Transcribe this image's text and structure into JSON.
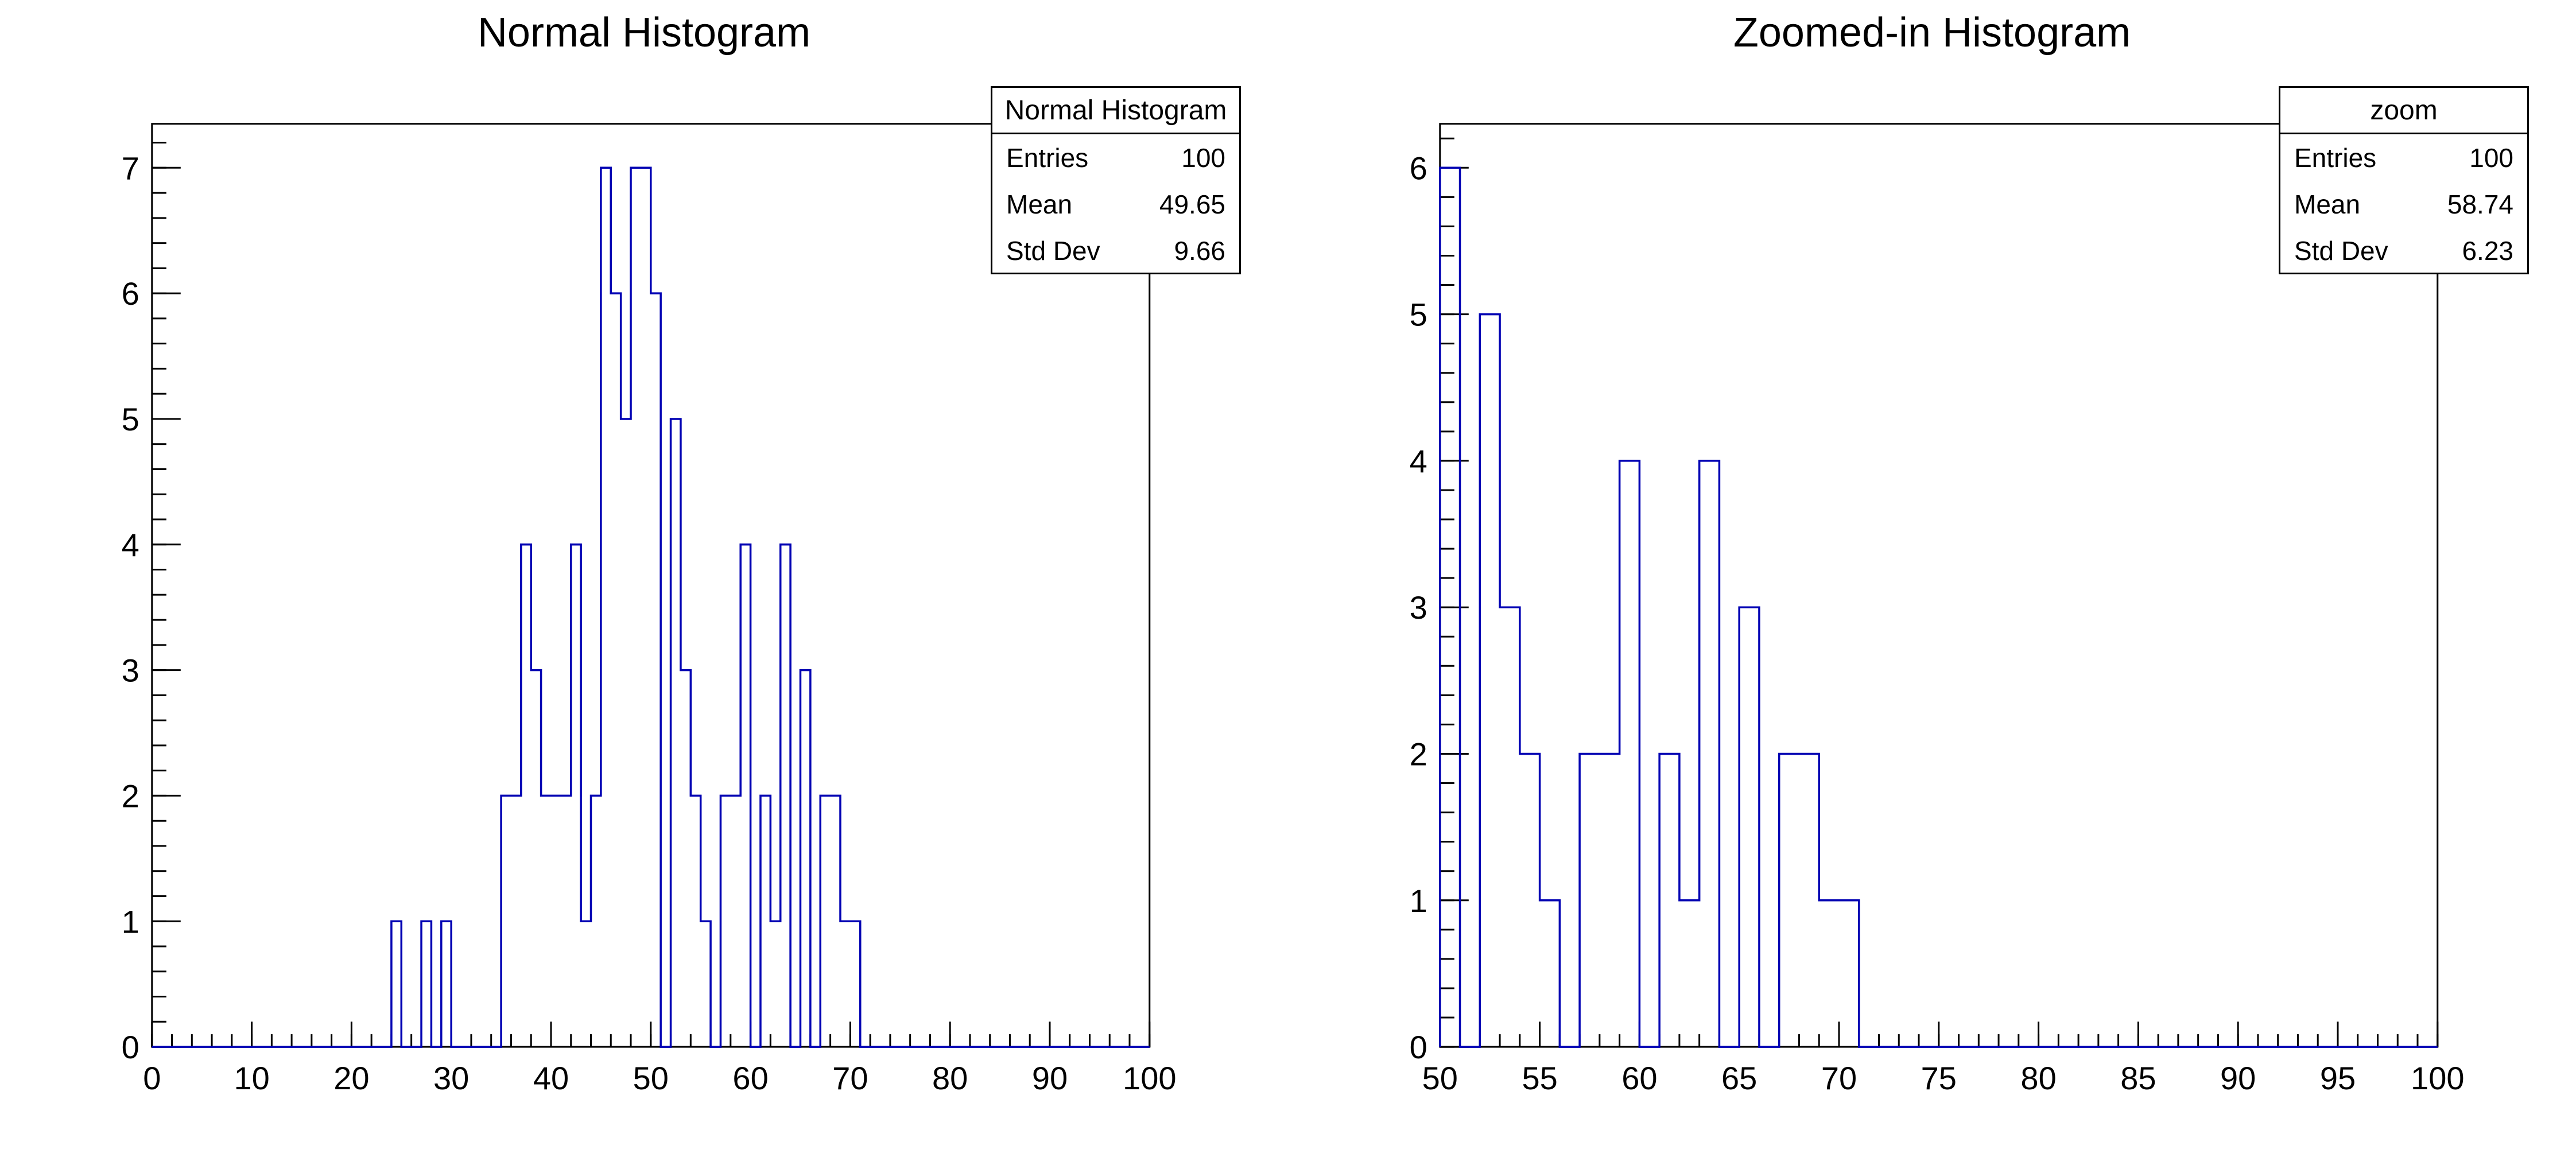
{
  "colors": {
    "histogram_line": "#0000b3",
    "axis": "#000000",
    "background": "#ffffff"
  },
  "chart_data": [
    {
      "type": "bar",
      "style": "root-step-histogram-outline",
      "title": "Normal Histogram",
      "xlabel": "",
      "ylabel": "",
      "xlim": [
        0,
        100
      ],
      "ylim": [
        0,
        7.35
      ],
      "grid": false,
      "x_tick_labels": [
        0,
        10,
        20,
        30,
        40,
        50,
        60,
        70,
        80,
        90,
        100
      ],
      "y_tick_labels": [
        0,
        1,
        2,
        3,
        4,
        5,
        6,
        7
      ],
      "x_minor_tick": 2,
      "y_minor_tick": 0.2,
      "bin_width": 1,
      "bins": [
        [
          24,
          1
        ],
        [
          27,
          1
        ],
        [
          29,
          1
        ],
        [
          35,
          2
        ],
        [
          36,
          2
        ],
        [
          37,
          4
        ],
        [
          38,
          3
        ],
        [
          39,
          2
        ],
        [
          40,
          2
        ],
        [
          41,
          2
        ],
        [
          42,
          4
        ],
        [
          43,
          1
        ],
        [
          44,
          2
        ],
        [
          45,
          7
        ],
        [
          46,
          6
        ],
        [
          47,
          5
        ],
        [
          48,
          7
        ],
        [
          49,
          7
        ],
        [
          50,
          6
        ],
        [
          52,
          5
        ],
        [
          53,
          3
        ],
        [
          54,
          2
        ],
        [
          55,
          1
        ],
        [
          57,
          2
        ],
        [
          58,
          2
        ],
        [
          59,
          4
        ],
        [
          61,
          2
        ],
        [
          62,
          1
        ],
        [
          63,
          4
        ],
        [
          65,
          3
        ],
        [
          67,
          2
        ],
        [
          68,
          2
        ],
        [
          69,
          1
        ],
        [
          70,
          1
        ]
      ],
      "stats_box": {
        "title": "Normal Histogram",
        "rows": [
          {
            "label": "Entries",
            "value": "100"
          },
          {
            "label": "Mean",
            "value": "49.65"
          },
          {
            "label": "Std Dev",
            "value": "9.66"
          }
        ]
      }
    },
    {
      "type": "bar",
      "style": "root-step-histogram-outline",
      "title": "Zoomed-in Histogram",
      "xlabel": "",
      "ylabel": "",
      "xlim": [
        50,
        100
      ],
      "ylim": [
        0,
        6.3
      ],
      "grid": false,
      "x_tick_labels": [
        50,
        55,
        60,
        65,
        70,
        75,
        80,
        85,
        90,
        95,
        100
      ],
      "y_tick_labels": [
        0,
        1,
        2,
        3,
        4,
        5,
        6
      ],
      "x_minor_tick": 1,
      "y_minor_tick": 0.2,
      "bin_width": 1,
      "bins": [
        [
          50,
          6
        ],
        [
          52,
          5
        ],
        [
          53,
          3
        ],
        [
          54,
          2
        ],
        [
          55,
          1
        ],
        [
          57,
          2
        ],
        [
          58,
          2
        ],
        [
          59,
          4
        ],
        [
          61,
          2
        ],
        [
          62,
          1
        ],
        [
          63,
          4
        ],
        [
          65,
          3
        ],
        [
          67,
          2
        ],
        [
          68,
          2
        ],
        [
          69,
          1
        ],
        [
          70,
          1
        ]
      ],
      "stats_box": {
        "title": "zoom",
        "rows": [
          {
            "label": "Entries",
            "value": "100"
          },
          {
            "label": "Mean",
            "value": "58.74"
          },
          {
            "label": "Std Dev",
            "value": "6.23"
          }
        ]
      }
    }
  ]
}
